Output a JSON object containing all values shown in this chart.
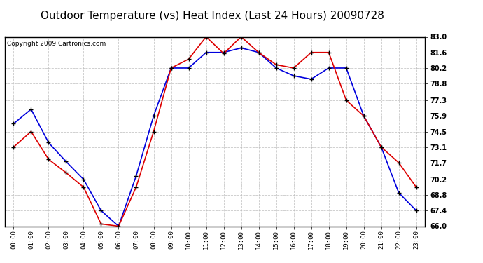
{
  "title": "Outdoor Temperature (vs) Heat Index (Last 24 Hours) 20090728",
  "copyright": "Copyright 2009 Cartronics.com",
  "x_labels": [
    "00:00",
    "01:00",
    "02:00",
    "03:00",
    "04:00",
    "05:00",
    "06:00",
    "07:00",
    "08:00",
    "09:00",
    "10:00",
    "11:00",
    "12:00",
    "13:00",
    "14:00",
    "15:00",
    "16:00",
    "17:00",
    "18:00",
    "19:00",
    "20:00",
    "21:00",
    "22:00",
    "23:00"
  ],
  "blue_data": [
    75.2,
    76.5,
    73.5,
    71.8,
    70.2,
    67.4,
    66.0,
    70.5,
    75.9,
    80.2,
    80.2,
    81.6,
    81.6,
    82.0,
    81.6,
    80.2,
    79.5,
    79.2,
    80.2,
    80.2,
    75.9,
    73.1,
    69.0,
    67.4
  ],
  "red_data": [
    73.1,
    74.5,
    72.0,
    70.8,
    69.5,
    66.2,
    66.0,
    69.5,
    74.5,
    80.2,
    81.0,
    83.0,
    81.5,
    83.0,
    81.6,
    80.5,
    80.2,
    81.6,
    81.6,
    77.3,
    75.9,
    73.1,
    71.7,
    69.5
  ],
  "ylim": [
    66.0,
    83.0
  ],
  "yticks": [
    66.0,
    67.4,
    68.8,
    70.2,
    71.7,
    73.1,
    74.5,
    75.9,
    77.3,
    78.8,
    80.2,
    81.6,
    83.0
  ],
  "blue_color": "#0000dd",
  "red_color": "#dd0000",
  "bg_color": "#ffffff",
  "plot_bg_color": "#ffffff",
  "grid_color": "#bbbbbb",
  "title_fontsize": 11,
  "copyright_fontsize": 6.5
}
